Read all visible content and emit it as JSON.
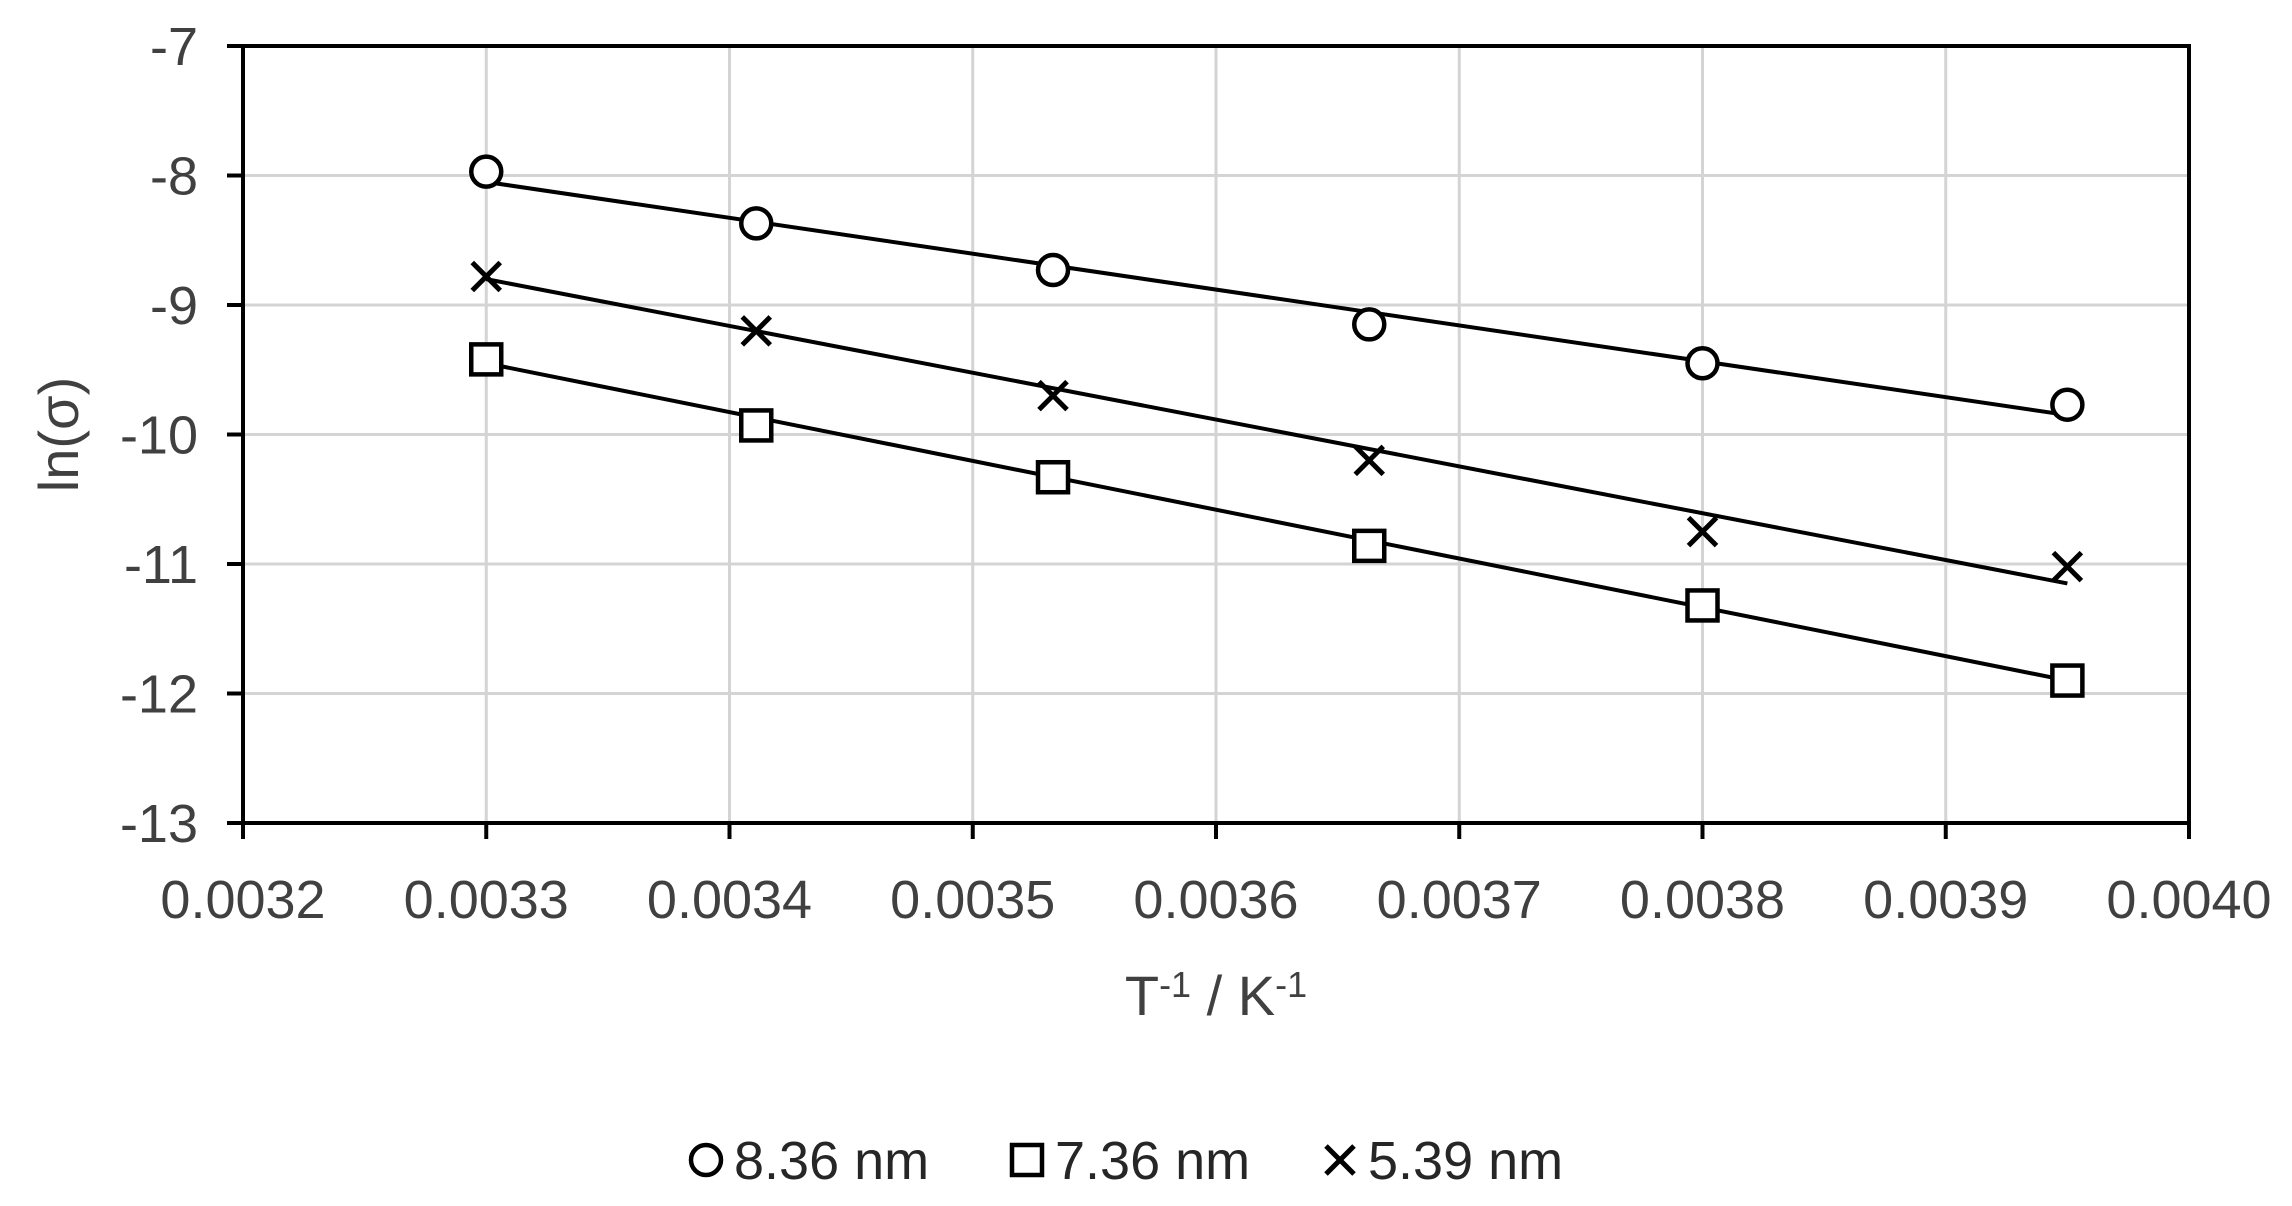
{
  "chart_data": {
    "type": "scatter",
    "title": "",
    "xlabel": {
      "base1": "T",
      "sup1": "-1",
      "sep": " / ",
      "base2": "K",
      "sup2": "-1"
    },
    "ylabel": "ln(σ)",
    "xlim": [
      0.0032,
      0.004
    ],
    "ylim": [
      -13,
      -7
    ],
    "xticks": [
      "0.0032",
      "0.0033",
      "0.0034",
      "0.0035",
      "0.0036",
      "0.0037",
      "0.0038",
      "0.0039",
      "0.0040"
    ],
    "yticks": [
      "-7",
      "-8",
      "-9",
      "-10",
      "-11",
      "-12",
      "-13"
    ],
    "grid": true,
    "legend_position": "bottom",
    "x": [
      0.0033,
      0.003411,
      0.003533,
      0.003663,
      0.0038,
      0.00395
    ],
    "series": [
      {
        "name": "8.36 nm",
        "marker": "circle",
        "values": [
          -7.97,
          -8.37,
          -8.73,
          -9.15,
          -9.45,
          -9.77
        ],
        "fit": {
          "x": [
            0.0033,
            0.00395
          ],
          "y": [
            -8.05,
            -9.85
          ]
        }
      },
      {
        "name": "7.36 nm",
        "marker": "square",
        "values": [
          -9.42,
          -9.93,
          -10.33,
          -10.86,
          -11.32,
          -11.9
        ],
        "fit": {
          "x": [
            0.0033,
            0.00395
          ],
          "y": [
            -9.45,
            -11.9
          ]
        }
      },
      {
        "name": "5.39 nm",
        "marker": "x",
        "values": [
          -8.78,
          -9.2,
          -9.7,
          -10.2,
          -10.75,
          -11.02
        ],
        "fit": {
          "x": [
            0.0033,
            0.00395
          ],
          "y": [
            -8.8,
            -11.15
          ]
        }
      }
    ],
    "colors": {
      "marker": "#000000",
      "line": "#000000",
      "grid": "#d4d4d4",
      "axis": "#000000",
      "text": "#404040"
    }
  }
}
